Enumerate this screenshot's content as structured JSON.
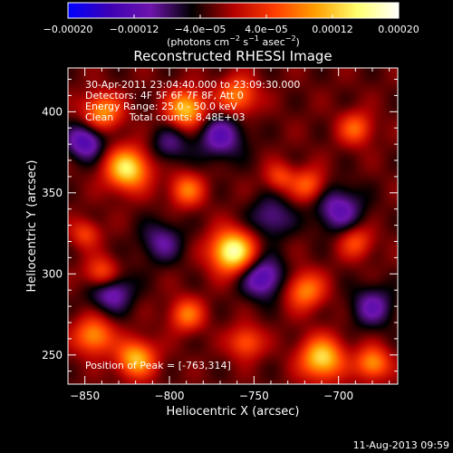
{
  "chart_data": {
    "type": "heatmap",
    "title": "Reconstructed RHESSI Image",
    "xlabel": "Heliocentric X (arcsec)",
    "ylabel": "Heliocentric Y (arcsec)",
    "xlim": [
      -860,
      -665
    ],
    "ylim": [
      232,
      427
    ],
    "x_ticks": [
      -850,
      -800,
      -750,
      -700
    ],
    "x_tick_labels": [
      "−850",
      "−800",
      "−750",
      "−700"
    ],
    "y_ticks": [
      250,
      300,
      350,
      400
    ],
    "y_tick_labels": [
      "250",
      "300",
      "350",
      "400"
    ],
    "colorbar": {
      "range": [
        -0.0002,
        0.0002
      ],
      "ticks": [
        -0.0002,
        -0.00012,
        -4e-05,
        4e-05,
        0.00012,
        0.0002
      ],
      "tick_labels": [
        "−0.00020",
        "−0.00012",
        "−4.0e−05",
        "4.0e−05",
        "0.00012",
        "0.00020"
      ],
      "units_label": "(photons cm",
      "units_exp1": "−2",
      "units_mid": " s",
      "units_exp2": "−1",
      "units_mid2": " asec",
      "units_exp3": "−2",
      "units_end": ")",
      "colors": [
        "#0000ff",
        "#3c00b4",
        "#6e14ac",
        "#000000",
        "#b40000",
        "#ff3c00",
        "#ffa000",
        "#ffff6e",
        "#ffffff"
      ]
    },
    "annotations": [
      "30-Apr-2011 23:04:40.000 to 23:09:30.000",
      "Detectors: 4F 5F 6F 7F 8F, Att 0",
      "Energy Range: 25.0 - 50.0 keV",
      "Clean     Total counts: 8.48E+03"
    ],
    "peak_label": "Position of Peak = [-763,314]",
    "peak": [
      -763,
      314
    ],
    "sources": [
      {
        "x": -763,
        "y": 314,
        "amp": 1.0,
        "s": 9
      },
      {
        "x": -825,
        "y": 365,
        "amp": 0.85,
        "s": 9
      },
      {
        "x": -790,
        "y": 402,
        "amp": 0.75,
        "s": 8
      },
      {
        "x": -840,
        "y": 400,
        "amp": 0.6,
        "s": 8
      },
      {
        "x": -760,
        "y": 410,
        "amp": 0.55,
        "s": 8
      },
      {
        "x": -790,
        "y": 352,
        "amp": 0.5,
        "s": 7
      },
      {
        "x": -718,
        "y": 355,
        "amp": 0.45,
        "s": 7
      },
      {
        "x": -690,
        "y": 390,
        "amp": 0.45,
        "s": 7
      },
      {
        "x": -840,
        "y": 300,
        "amp": 0.55,
        "s": 7
      },
      {
        "x": -845,
        "y": 262,
        "amp": 0.6,
        "s": 8
      },
      {
        "x": -820,
        "y": 248,
        "amp": 0.7,
        "s": 8
      },
      {
        "x": -790,
        "y": 275,
        "amp": 0.5,
        "s": 7
      },
      {
        "x": -720,
        "y": 290,
        "amp": 0.55,
        "s": 8
      },
      {
        "x": -710,
        "y": 248,
        "amp": 0.8,
        "s": 9
      },
      {
        "x": -680,
        "y": 245,
        "amp": 0.6,
        "s": 7
      },
      {
        "x": -690,
        "y": 320,
        "amp": 0.4,
        "s": 7
      },
      {
        "x": -755,
        "y": 258,
        "amp": 0.45,
        "s": 7
      },
      {
        "x": -735,
        "y": 360,
        "amp": 0.35,
        "s": 6
      },
      {
        "x": -850,
        "y": 325,
        "amp": 0.35,
        "s": 6
      },
      {
        "x": -770,
        "y": 385,
        "amp": -0.45,
        "s": 10
      },
      {
        "x": -850,
        "y": 382,
        "amp": -0.55,
        "s": 8
      },
      {
        "x": -835,
        "y": 290,
        "amp": -0.5,
        "s": 9
      },
      {
        "x": -745,
        "y": 298,
        "amp": -0.55,
        "s": 9
      },
      {
        "x": -700,
        "y": 340,
        "amp": -0.45,
        "s": 10
      },
      {
        "x": -680,
        "y": 280,
        "amp": -0.4,
        "s": 9
      },
      {
        "x": -740,
        "y": 335,
        "amp": -0.35,
        "s": 9
      },
      {
        "x": -805,
        "y": 320,
        "amp": -0.35,
        "s": 9
      },
      {
        "x": -800,
        "y": 380,
        "amp": -0.3,
        "s": 8
      }
    ]
  },
  "footer": {
    "timestamp": "11-Aug-2013 09:59"
  }
}
